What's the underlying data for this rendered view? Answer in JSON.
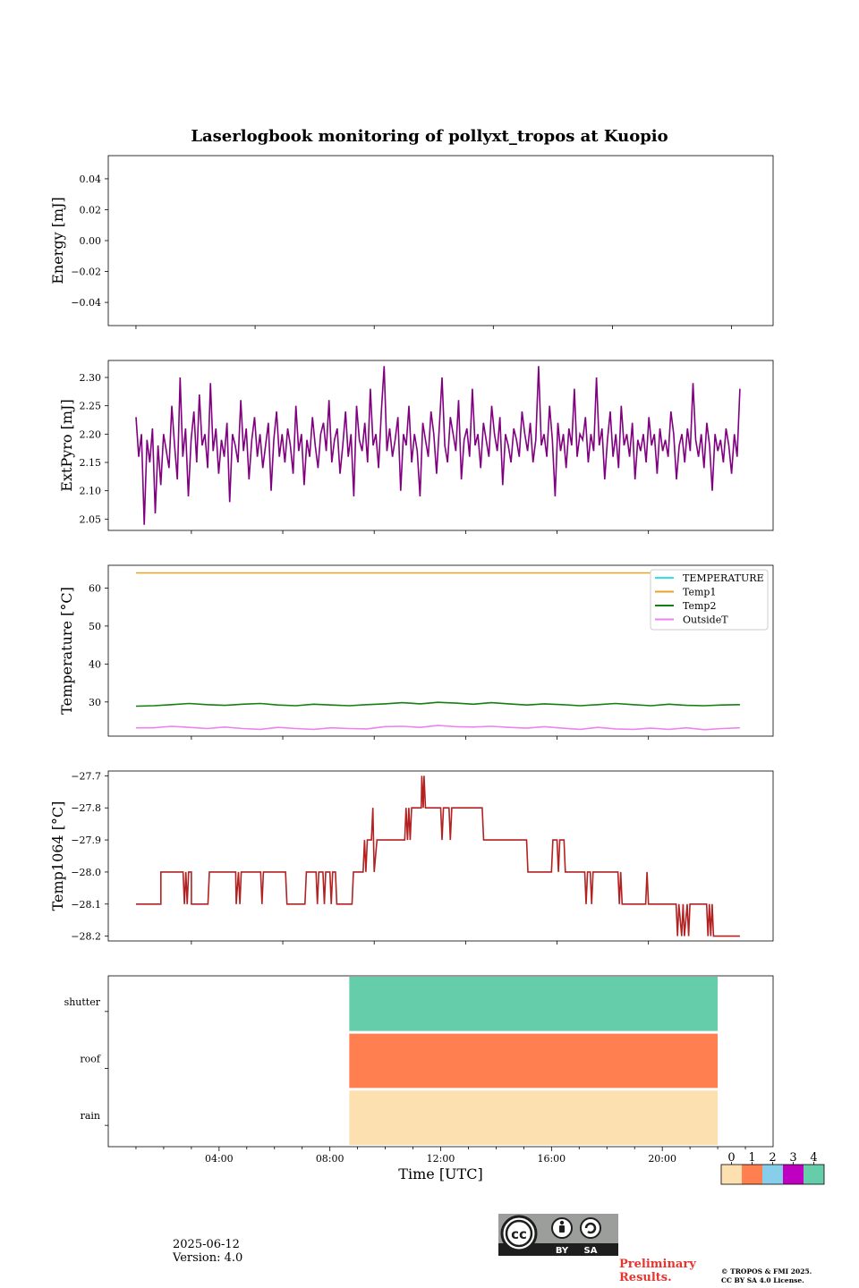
{
  "chart_data": [
    {
      "type": "line",
      "title": "Laserlogbook monitoring of pollyxt_tropos at Kuopio",
      "ylabel": "Energy [mJ]",
      "ylim": [
        -0.055,
        0.055
      ],
      "yticks": [
        0.04,
        0.02,
        0.0,
        -0.02,
        -0.04
      ],
      "ytick_labels": [
        "0.04",
        "0.02",
        "0.00",
        "−0.02",
        "−0.04"
      ],
      "series": []
    },
    {
      "type": "line",
      "ylabel": "ExtPyro [mJ]",
      "ylim": [
        2.03,
        2.33
      ],
      "yticks": [
        2.3,
        2.25,
        2.2,
        2.15,
        2.1,
        2.05
      ],
      "ytick_labels": [
        "2.30",
        "2.25",
        "2.20",
        "2.15",
        "2.10",
        "2.05"
      ],
      "series": [
        {
          "color": "#800080",
          "x_range_hours": [
            1.0,
            22.8
          ],
          "typical_range": [
            2.12,
            2.24
          ],
          "values": [
            2.23,
            2.16,
            2.2,
            2.04,
            2.19,
            2.15,
            2.21,
            2.06,
            2.18,
            2.11,
            2.2,
            2.17,
            2.14,
            2.25,
            2.18,
            2.12,
            2.3,
            2.16,
            2.21,
            2.09,
            2.19,
            2.24,
            2.15,
            2.27,
            2.18,
            2.2,
            2.14,
            2.29,
            2.17,
            2.21,
            2.13,
            2.19,
            2.16,
            2.22,
            2.08,
            2.2,
            2.18,
            2.15,
            2.26,
            2.17,
            2.21,
            2.12,
            2.19,
            2.23,
            2.16,
            2.2,
            2.14,
            2.18,
            2.22,
            2.1,
            2.19,
            2.24,
            2.16,
            2.2,
            2.15,
            2.21,
            2.18,
            2.13,
            2.25,
            2.17,
            2.2,
            2.11,
            2.19,
            2.16,
            2.23,
            2.18,
            2.14,
            2.2,
            2.22,
            2.17,
            2.26,
            2.15,
            2.19,
            2.21,
            2.13,
            2.18,
            2.24,
            2.16,
            2.2,
            2.09,
            2.25,
            2.19,
            2.17,
            2.22,
            2.15,
            2.28,
            2.18,
            2.2,
            2.14,
            2.24,
            2.32,
            2.17,
            2.21,
            2.16,
            2.19,
            2.23,
            2.1,
            2.2,
            2.18,
            2.25,
            2.15,
            2.2,
            2.17,
            2.09,
            2.22,
            2.19,
            2.16,
            2.24,
            2.2,
            2.13,
            2.21,
            2.3,
            2.18,
            2.15,
            2.23,
            2.2,
            2.17,
            2.26,
            2.12,
            2.19,
            2.21,
            2.16,
            2.28,
            2.18,
            2.2,
            2.14,
            2.22,
            2.19,
            2.16,
            2.25,
            2.2,
            2.17,
            2.23,
            2.11,
            2.2,
            2.18,
            2.15,
            2.21,
            2.19,
            2.16,
            2.24,
            2.2,
            2.17,
            2.22,
            2.15,
            2.19,
            2.32,
            2.18,
            2.2,
            2.16,
            2.25,
            2.19,
            2.09,
            2.22,
            2.17,
            2.2,
            2.14,
            2.21,
            2.18,
            2.28,
            2.16,
            2.2,
            2.19,
            2.23,
            2.15,
            2.2,
            2.17,
            2.3,
            2.18,
            2.21,
            2.12,
            2.19,
            2.24,
            2.16,
            2.2,
            2.14,
            2.25,
            2.18,
            2.2,
            2.16,
            2.22,
            2.12,
            2.19,
            2.17,
            2.2,
            2.15,
            2.23,
            2.18,
            2.2,
            2.13,
            2.21,
            2.17,
            2.19,
            2.16,
            2.24,
            2.2,
            2.12,
            2.18,
            2.2,
            2.15,
            2.21,
            2.17,
            2.29,
            2.19,
            2.16,
            2.2,
            2.14,
            2.22,
            2.18,
            2.1,
            2.2,
            2.17,
            2.19,
            2.15,
            2.21,
            2.18,
            2.13,
            2.2,
            2.16,
            2.28
          ]
        }
      ]
    },
    {
      "type": "line",
      "ylabel": "Temperature [°C]",
      "ylim": [
        21,
        66
      ],
      "yticks": [
        60,
        50,
        40,
        30
      ],
      "ytick_labels": [
        "60",
        "50",
        "40",
        "30"
      ],
      "legend_position": "upper-right",
      "series": [
        {
          "name": "TEMPERATURE",
          "color": "#33e0e8",
          "values": []
        },
        {
          "name": "Temp1",
          "color": "#e8a22a",
          "x_range_hours": [
            1.0,
            22.8
          ],
          "values": [
            64.0,
            64.0
          ]
        },
        {
          "name": "Temp2",
          "color": "#128012",
          "x_range_hours": [
            1.0,
            22.8
          ],
          "values": [
            28.9,
            29.0,
            29.3,
            29.6,
            29.3,
            29.1,
            29.4,
            29.6,
            29.2,
            29.0,
            29.4,
            29.2,
            29.0,
            29.3,
            29.5,
            29.8,
            29.5,
            29.9,
            29.7,
            29.4,
            29.8,
            29.5,
            29.2,
            29.5,
            29.3,
            29.0,
            29.3,
            29.6,
            29.3,
            29.0,
            29.4,
            29.1,
            29.0,
            29.2,
            29.3
          ]
        },
        {
          "name": "OutsideT",
          "color": "#ee82ee",
          "x_range_hours": [
            1.0,
            22.8
          ],
          "values": [
            23.2,
            23.2,
            23.6,
            23.3,
            23.0,
            23.4,
            23.0,
            22.8,
            23.3,
            23.0,
            22.8,
            23.2,
            23.0,
            22.9,
            23.5,
            23.6,
            23.3,
            23.8,
            23.5,
            23.4,
            23.6,
            23.3,
            23.1,
            23.5,
            23.1,
            22.8,
            23.3,
            22.9,
            22.8,
            23.1,
            22.8,
            23.2,
            22.7,
            23.0,
            23.2
          ]
        }
      ]
    },
    {
      "type": "line",
      "ylabel": "Temp1064 [°C]",
      "ylim": [
        -28.215,
        -27.685
      ],
      "yticks": [
        -27.7,
        -27.8,
        -27.9,
        -28.0,
        -28.1,
        -28.2
      ],
      "ytick_labels": [
        "−27.7",
        "−27.8",
        "−27.9",
        "−28.0",
        "−28.1",
        "−28.2"
      ],
      "series": [
        {
          "color": "#b22222",
          "points": [
            [
              1.0,
              -28.1
            ],
            [
              1.9,
              -28.1
            ],
            [
              1.9,
              -28.0
            ],
            [
              2.7,
              -28.0
            ],
            [
              2.75,
              -28.1
            ],
            [
              2.8,
              -28.0
            ],
            [
              2.85,
              -28.1
            ],
            [
              2.9,
              -28.0
            ],
            [
              3.0,
              -28.0
            ],
            [
              3.0,
              -28.1
            ],
            [
              3.6,
              -28.1
            ],
            [
              3.65,
              -28.0
            ],
            [
              4.6,
              -28.0
            ],
            [
              4.62,
              -28.1
            ],
            [
              4.7,
              -28.0
            ],
            [
              4.75,
              -28.1
            ],
            [
              4.8,
              -28.0
            ],
            [
              5.5,
              -28.0
            ],
            [
              5.55,
              -28.1
            ],
            [
              5.6,
              -28.0
            ],
            [
              6.4,
              -28.0
            ],
            [
              6.45,
              -28.1
            ],
            [
              7.1,
              -28.1
            ],
            [
              7.15,
              -28.0
            ],
            [
              7.5,
              -28.0
            ],
            [
              7.55,
              -28.1
            ],
            [
              7.6,
              -28.0
            ],
            [
              7.75,
              -28.0
            ],
            [
              7.8,
              -28.1
            ],
            [
              7.85,
              -28.0
            ],
            [
              8.0,
              -28.0
            ],
            [
              8.05,
              -28.1
            ],
            [
              8.1,
              -28.0
            ],
            [
              8.2,
              -28.0
            ],
            [
              8.25,
              -28.1
            ],
            [
              8.8,
              -28.1
            ],
            [
              8.85,
              -28.0
            ],
            [
              9.2,
              -28.0
            ],
            [
              9.25,
              -27.9
            ],
            [
              9.3,
              -28.0
            ],
            [
              9.35,
              -27.9
            ],
            [
              9.5,
              -27.9
            ],
            [
              9.55,
              -27.8
            ],
            [
              9.6,
              -28.0
            ],
            [
              9.7,
              -27.9
            ],
            [
              10.7,
              -27.9
            ],
            [
              10.75,
              -27.8
            ],
            [
              10.8,
              -27.9
            ],
            [
              10.85,
              -27.8
            ],
            [
              10.9,
              -27.9
            ],
            [
              10.95,
              -27.8
            ],
            [
              11.3,
              -27.8
            ],
            [
              11.32,
              -27.7
            ],
            [
              11.37,
              -27.8
            ],
            [
              11.4,
              -27.7
            ],
            [
              11.45,
              -27.8
            ],
            [
              12.0,
              -27.8
            ],
            [
              12.05,
              -27.9
            ],
            [
              12.1,
              -27.8
            ],
            [
              12.3,
              -27.8
            ],
            [
              12.35,
              -27.9
            ],
            [
              12.4,
              -27.8
            ],
            [
              13.5,
              -27.8
            ],
            [
              13.55,
              -27.9
            ],
            [
              15.1,
              -27.9
            ],
            [
              15.15,
              -28.0
            ],
            [
              16.0,
              -28.0
            ],
            [
              16.05,
              -27.9
            ],
            [
              16.2,
              -27.9
            ],
            [
              16.25,
              -28.0
            ],
            [
              16.3,
              -27.9
            ],
            [
              16.45,
              -27.9
            ],
            [
              16.5,
              -28.0
            ],
            [
              17.2,
              -28.0
            ],
            [
              17.25,
              -28.1
            ],
            [
              17.3,
              -28.0
            ],
            [
              17.4,
              -28.0
            ],
            [
              17.45,
              -28.1
            ],
            [
              17.5,
              -28.0
            ],
            [
              18.4,
              -28.0
            ],
            [
              18.45,
              -28.1
            ],
            [
              18.5,
              -28.0
            ],
            [
              18.55,
              -28.1
            ],
            [
              19.4,
              -28.1
            ],
            [
              19.45,
              -28.0
            ],
            [
              19.5,
              -28.1
            ],
            [
              20.5,
              -28.1
            ],
            [
              20.55,
              -28.2
            ],
            [
              20.6,
              -28.1
            ],
            [
              20.7,
              -28.2
            ],
            [
              20.75,
              -28.1
            ],
            [
              20.8,
              -28.2
            ],
            [
              20.9,
              -28.1
            ],
            [
              20.95,
              -28.2
            ],
            [
              21.0,
              -28.1
            ],
            [
              21.6,
              -28.1
            ],
            [
              21.65,
              -28.2
            ],
            [
              21.7,
              -28.1
            ],
            [
              21.75,
              -28.2
            ],
            [
              21.8,
              -28.1
            ],
            [
              21.85,
              -28.2
            ],
            [
              22.8,
              -28.2
            ]
          ]
        }
      ]
    },
    {
      "type": "heatmap",
      "yticks": [
        "shutter",
        "roof",
        "rain"
      ],
      "xlabel": "Time [UTC]",
      "xticks": [
        "04:00",
        "08:00",
        "12:00",
        "16:00",
        "20:00"
      ],
      "x_range_hours": [
        0,
        24
      ],
      "blocks": [
        {
          "row": "shutter",
          "start": 8.7,
          "end": 22.0,
          "code": 4
        },
        {
          "row": "roof",
          "start": 8.7,
          "end": 22.0,
          "code": 1
        },
        {
          "row": "rain",
          "start": 8.7,
          "end": 22.0,
          "code": 0
        }
      ],
      "colorbar": {
        "labels": [
          "0",
          "1",
          "2",
          "3",
          "4"
        ],
        "colors": [
          "#fde0b0",
          "#ff7f50",
          "#87ceeb",
          "#c000c0",
          "#66cdaa"
        ]
      }
    }
  ],
  "footer": {
    "date": "2025-06-12",
    "version": "Version: 4.0",
    "preliminary_line1": "Preliminary",
    "preliminary_line2": "Results.",
    "copyright_line1": "© TROPOS & FMI 2025.",
    "copyright_line2": "CC BY SA 4.0 License.",
    "badge": {
      "icon": "cc-by-sa-icon",
      "by": "BY",
      "sa": "SA"
    }
  }
}
